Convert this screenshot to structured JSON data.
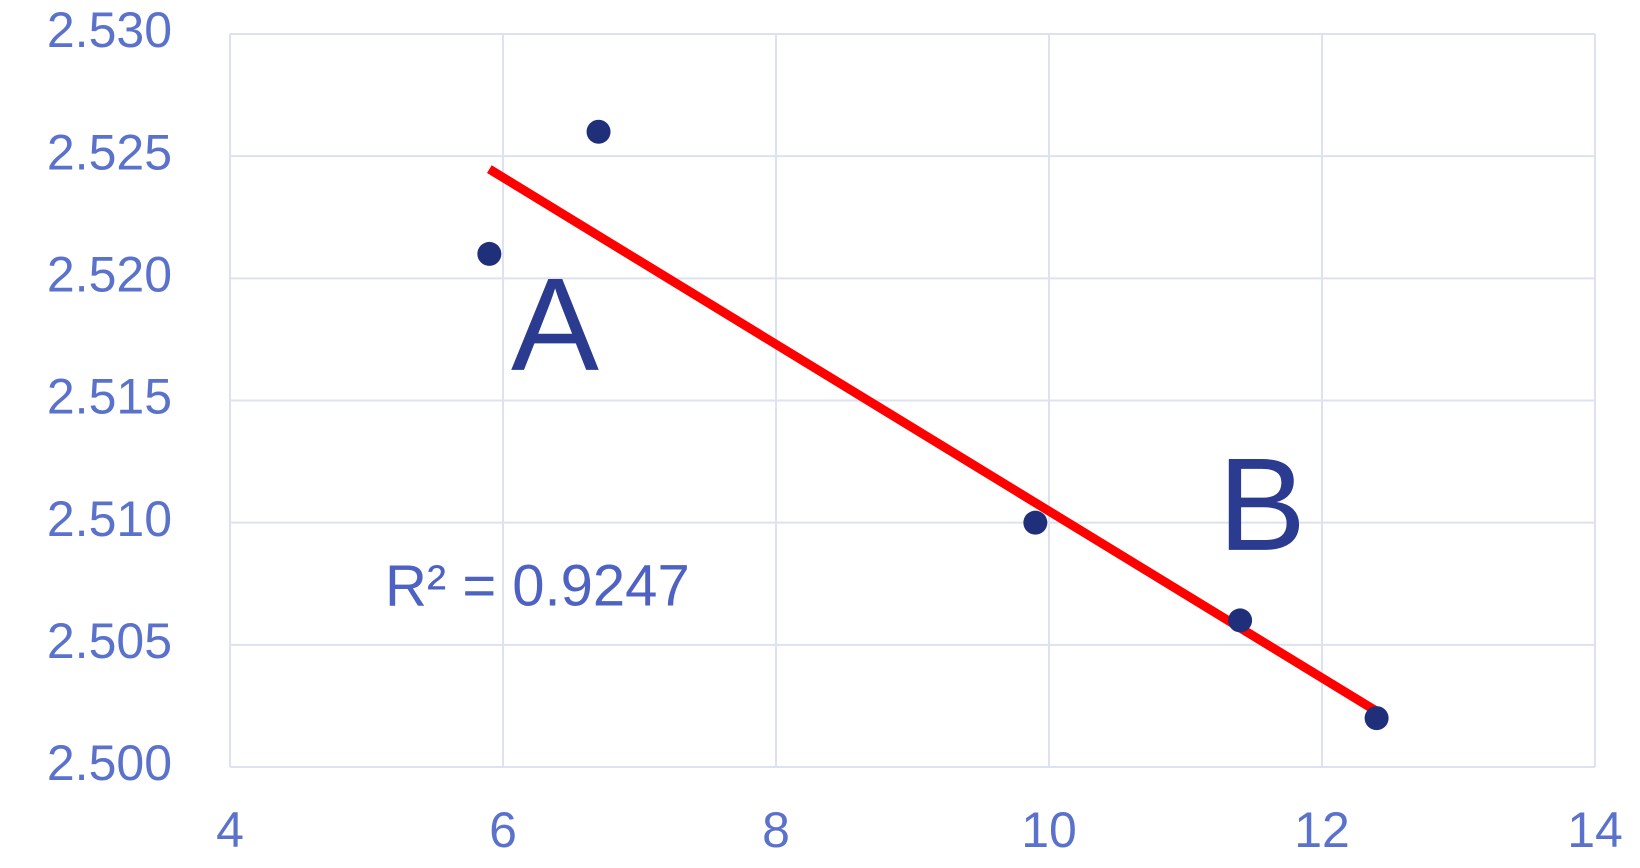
{
  "chart_data": {
    "type": "scatter",
    "x": [
      5.9,
      6.7,
      9.9,
      11.4,
      12.4
    ],
    "values": [
      2.521,
      2.526,
      2.51,
      2.506,
      2.502
    ],
    "color": "#1f2f7a",
    "trendline": "linear",
    "trendline_color": "#ff0000",
    "annotations": [
      "A",
      "B",
      "R² = 0.9247"
    ],
    "xlim": [
      4,
      14
    ],
    "xticks": [
      4,
      6,
      8,
      10,
      12,
      14
    ],
    "ylim": [
      2.5,
      2.53
    ],
    "yticks": [
      {
        "value": 2.5,
        "label": "2.500"
      },
      {
        "value": 2.505,
        "label": "2.505"
      },
      {
        "value": 2.51,
        "label": "2.510"
      },
      {
        "value": 2.515,
        "label": "2.515"
      },
      {
        "value": 2.52,
        "label": "2.520"
      },
      {
        "value": 2.525,
        "label": "2.525"
      },
      {
        "value": 2.53,
        "label": "2.530"
      }
    ],
    "grid": true
  }
}
